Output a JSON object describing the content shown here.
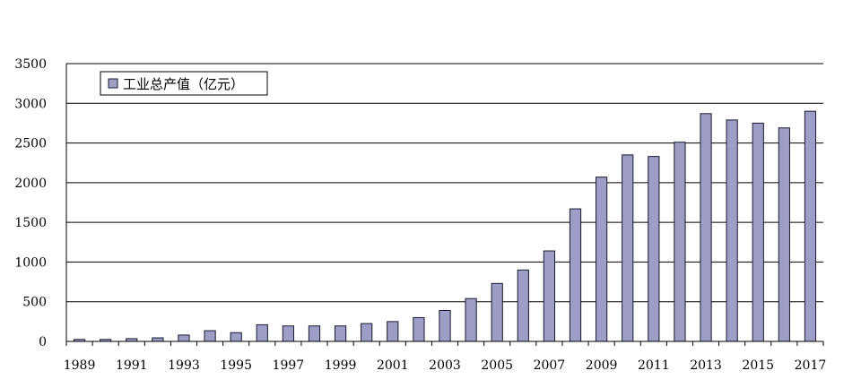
{
  "chart_data": {
    "type": "bar",
    "categories": [
      "1989",
      "1990",
      "1991",
      "1992",
      "1993",
      "1994",
      "1995",
      "1996",
      "1997",
      "1998",
      "1999",
      "2000",
      "2001",
      "2002",
      "2003",
      "2004",
      "2005",
      "2006",
      "2007",
      "2008",
      "2009",
      "2010",
      "2011",
      "2012",
      "2013",
      "2014",
      "2015",
      "2016",
      "2017"
    ],
    "x_tick_labels": [
      "1989",
      "1991",
      "1993",
      "1995",
      "1997",
      "1999",
      "2001",
      "2003",
      "2005",
      "2007",
      "2009",
      "2011",
      "2013",
      "2015",
      "2017"
    ],
    "series": [
      {
        "name": "工业总产值（亿元）",
        "values": [
          25,
          25,
          35,
          45,
          80,
          135,
          110,
          210,
          195,
          195,
          195,
          225,
          250,
          300,
          390,
          540,
          730,
          900,
          1140,
          1670,
          2070,
          2350,
          2330,
          2510,
          2870,
          2790,
          2750,
          2690,
          2900
        ]
      }
    ],
    "title": "",
    "xlabel": "",
    "ylabel": "",
    "ylim": [
      0,
      3500
    ],
    "y_ticks": [
      0,
      500,
      1000,
      1500,
      2000,
      2500,
      3000,
      3500
    ],
    "grid": true,
    "legend_position": "top-left",
    "colors": {
      "bar_fill": "#9d9dc6",
      "bar_stroke": "#1a1a33",
      "grid": "#000000"
    }
  }
}
